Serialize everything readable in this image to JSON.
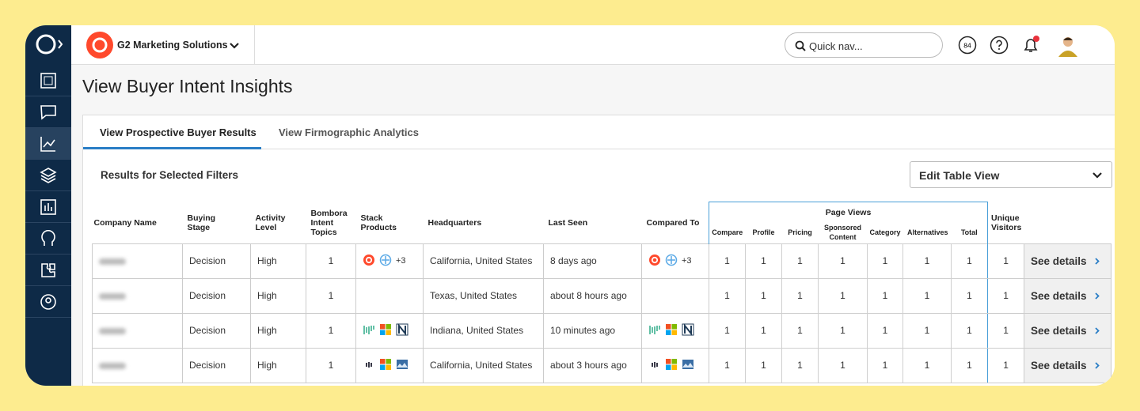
{
  "header": {
    "org": "G2 Marketing Solutions",
    "search_placeholder": "Quick nav...",
    "badge": "84"
  },
  "page_title": "View Buyer Intent Insights",
  "tabs": [
    "View Prospective Buyer Results",
    "View Firmographic Analytics"
  ],
  "results_heading": "Results for Selected Filters",
  "edit_table_view": "Edit Table View",
  "table": {
    "columns": [
      "Company Name",
      "Buying Stage",
      "Activity Level",
      "Bombora Intent Topics",
      "Stack Products",
      "Headquarters",
      "Last Seen",
      "Compared To"
    ],
    "page_views_group": "Page Views",
    "page_view_columns": [
      "Compare",
      "Profile",
      "Pricing",
      "Sponsored Content",
      "Category",
      "Alternatives",
      "Total"
    ],
    "unique_visitors_column": "Unique Visitors",
    "see_details": "See details",
    "rows": [
      {
        "buying_stage": "Decision",
        "activity_level": "High",
        "bombora_topics": 1,
        "stack_more": "+3",
        "headquarters": "California, United States",
        "last_seen": "8 days ago",
        "compared_more": "+3",
        "page_views": [
          1,
          1,
          1,
          1,
          1,
          1,
          1
        ],
        "unique_visitors": 1
      },
      {
        "buying_stage": "Decision",
        "activity_level": "High",
        "bombora_topics": 1,
        "headquarters": "Texas, United States",
        "last_seen": "about 8 hours ago",
        "page_views": [
          1,
          1,
          1,
          1,
          1,
          1,
          1
        ],
        "unique_visitors": 1
      },
      {
        "buying_stage": "Decision",
        "activity_level": "High",
        "bombora_topics": 1,
        "headquarters": "Indiana, United States",
        "last_seen": "10 minutes ago",
        "page_views": [
          1,
          1,
          1,
          1,
          1,
          1,
          1
        ],
        "unique_visitors": 1
      },
      {
        "buying_stage": "Decision",
        "activity_level": "High",
        "bombora_topics": 1,
        "headquarters": "California, United States",
        "last_seen": "about 3 hours ago",
        "page_views": [
          1,
          1,
          1,
          1,
          1,
          1,
          1
        ],
        "unique_visitors": 1
      }
    ]
  }
}
